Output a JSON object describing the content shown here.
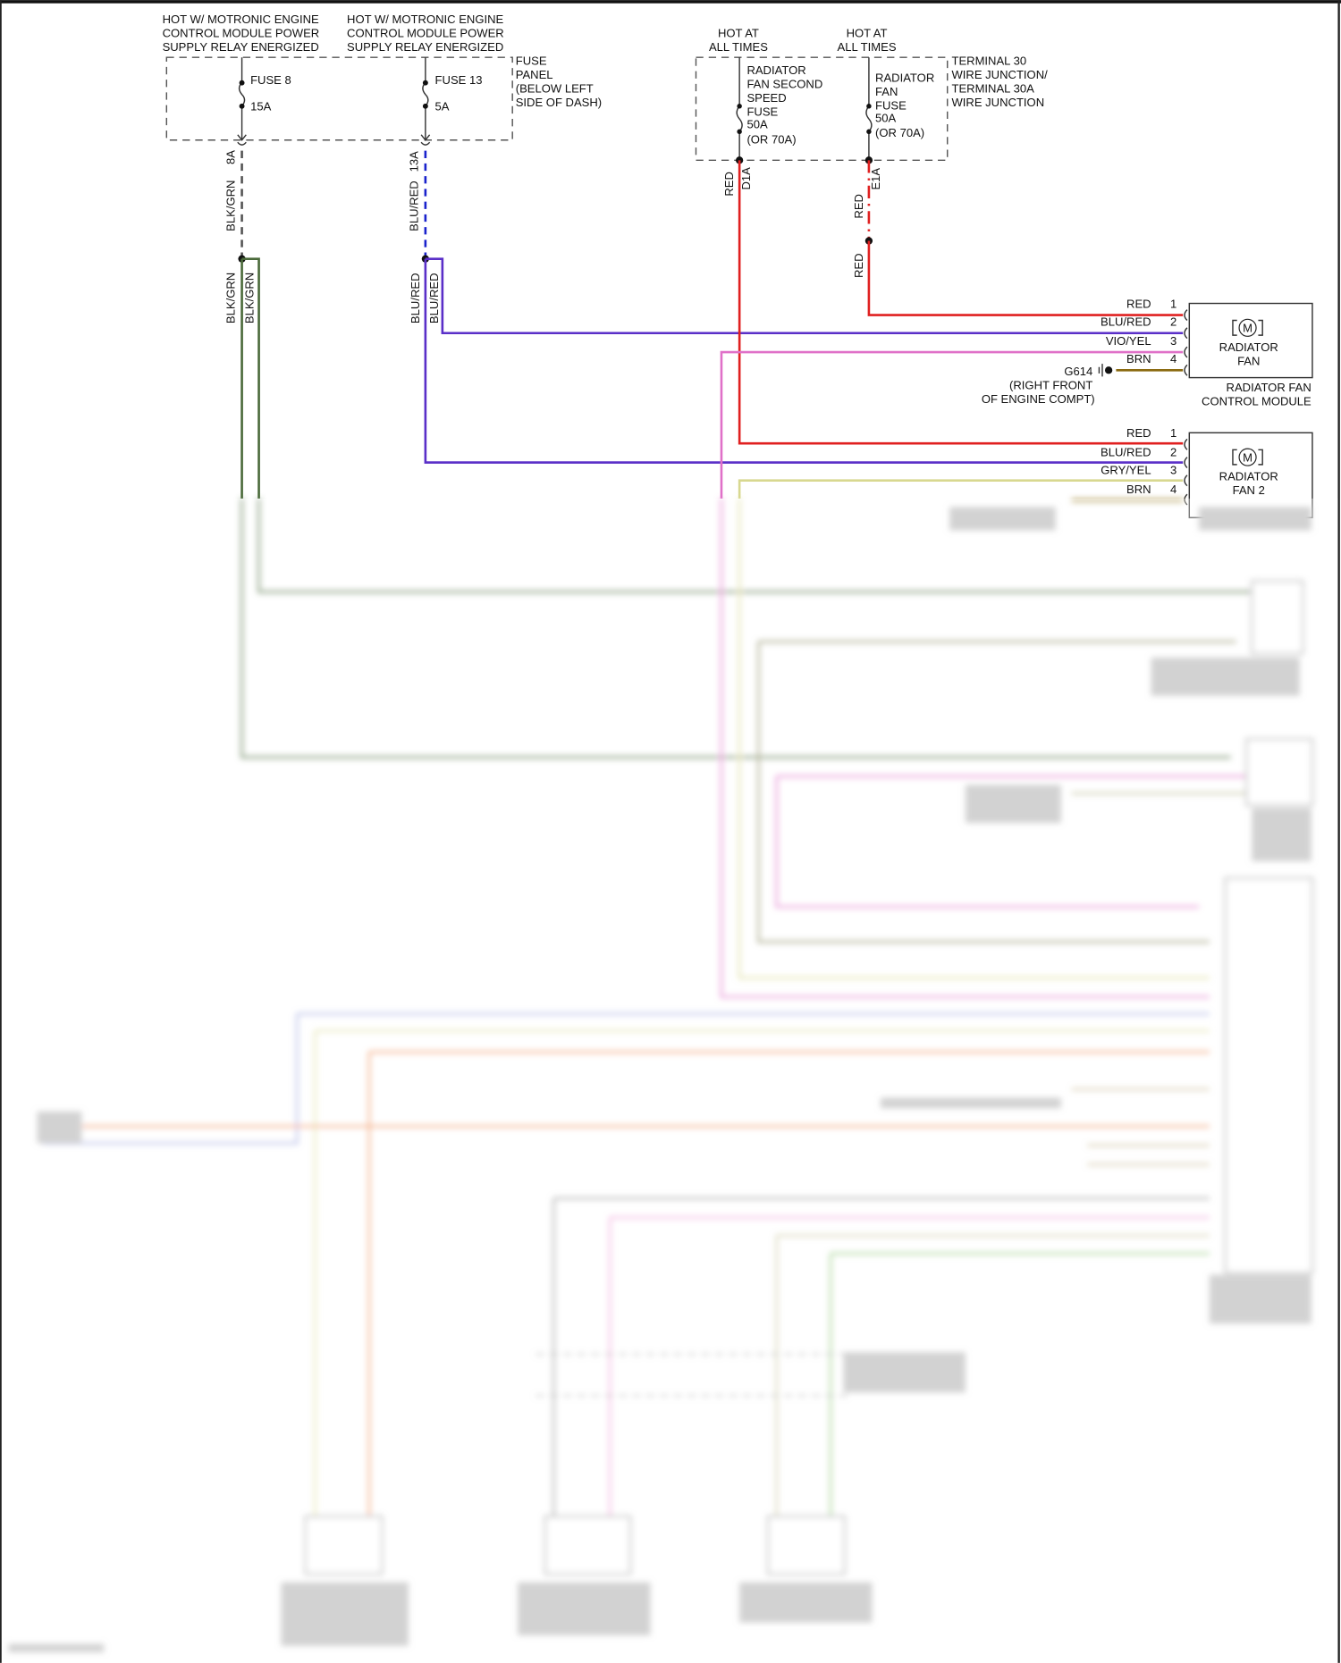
{
  "colors": {
    "red": "#e02020",
    "blu_red": "#5a2fc8",
    "blu_dash": "#1a22cc",
    "blk_grn": "#4a6a3a",
    "vio_yel": "#e070c8",
    "brn": "#8a6a10",
    "gry_yel": "#d8d890",
    "pink": "#f0a0d8",
    "orange": "#f0905a"
  },
  "fuse_panel": {
    "source_left": [
      "HOT W/ MOTRONIC ENGINE",
      "CONTROL MODULE POWER",
      "SUPPLY RELAY ENERGIZED"
    ],
    "source_right": [
      "HOT W/ MOTRONIC ENGINE",
      "CONTROL MODULE POWER",
      "SUPPLY RELAY ENERGIZED"
    ],
    "fuse8": {
      "name": "FUSE 8",
      "rating": "15A",
      "pin": "8A",
      "wire": "BLK/GRN"
    },
    "fuse13": {
      "name": "FUSE 13",
      "rating": "5A",
      "pin": "13A",
      "wire": "BLU/RED"
    },
    "label": [
      "FUSE",
      "PANEL",
      "(BELOW LEFT",
      "SIDE OF DASH)"
    ]
  },
  "splice_wires": {
    "left_a": "BLK/GRN",
    "left_b": "BLK/GRN",
    "right_a": "BLU/RED",
    "right_b": "BLU/RED"
  },
  "terminal_junction": {
    "hot1": [
      "HOT AT",
      "ALL TIMES"
    ],
    "hot2": [
      "HOT AT",
      "ALL TIMES"
    ],
    "fuse_second": [
      "RADIATOR",
      "FAN SECOND",
      "SPEED",
      "FUSE",
      "50A",
      "(OR 70A)"
    ],
    "fuse_fan": [
      "RADIATOR",
      "FAN",
      "FUSE",
      "50A",
      "(OR 70A)"
    ],
    "label": [
      "TERMINAL 30",
      "WIRE JUNCTION/",
      "TERMINAL 30A",
      "WIRE JUNCTION"
    ],
    "d1a": {
      "pin": "D1A",
      "wire": "RED"
    },
    "e1a": {
      "pin": "E1A",
      "wire": "RED",
      "wire2": "RED"
    }
  },
  "radiator_fan": {
    "title": [
      "RADIATOR",
      "FAN"
    ],
    "motor_icon": "M",
    "pins": [
      {
        "wire": "RED",
        "num": "1"
      },
      {
        "wire": "BLU/RED",
        "num": "2"
      },
      {
        "wire": "VIO/YEL",
        "num": "3"
      },
      {
        "wire": "BRN",
        "num": "4"
      }
    ],
    "ground": "G614",
    "ground_loc": [
      "(RIGHT FRONT",
      "OF ENGINE COMPT)"
    ],
    "module": [
      "RADIATOR FAN",
      "CONTROL MODULE"
    ]
  },
  "radiator_fan_2": {
    "title": [
      "RADIATOR",
      "FAN 2"
    ],
    "motor_icon": "M",
    "pins": [
      {
        "wire": "RED",
        "num": "1"
      },
      {
        "wire": "BLU/RED",
        "num": "2"
      },
      {
        "wire": "GRY/YEL",
        "num": "3"
      },
      {
        "wire": "BRN",
        "num": "4"
      }
    ]
  }
}
